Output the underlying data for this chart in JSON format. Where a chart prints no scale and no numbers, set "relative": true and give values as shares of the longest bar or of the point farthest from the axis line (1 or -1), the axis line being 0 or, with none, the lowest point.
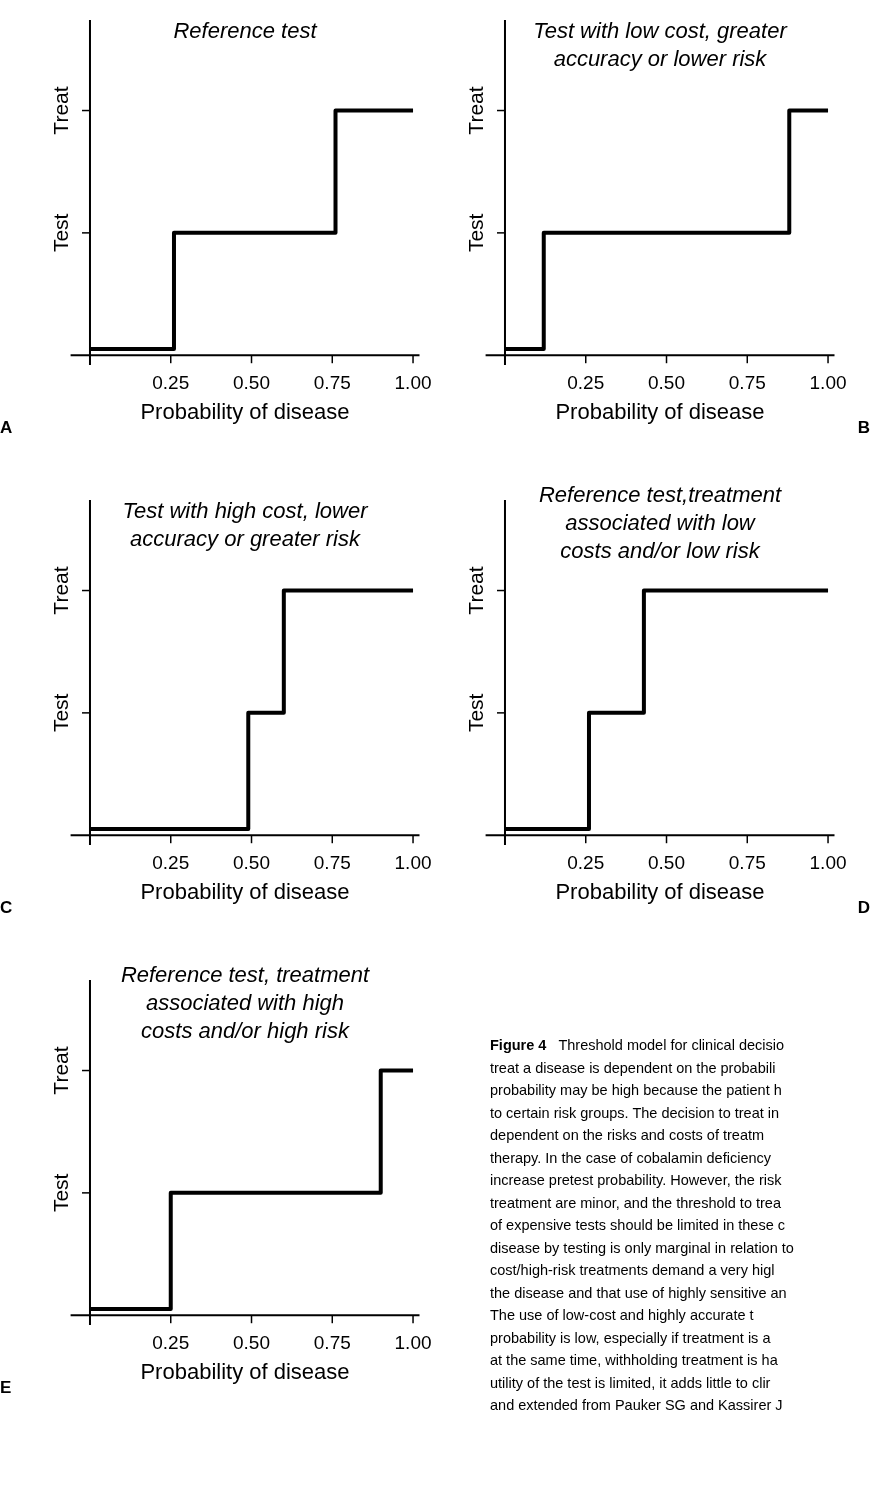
{
  "chart_data": [
    {
      "type": "step",
      "relative": true,
      "title": "Reference test",
      "xlabel": "Probability of disease",
      "annotations": [
        "A",
        "Test",
        "Treat"
      ],
      "x": [
        0,
        0.26,
        0.76,
        1.0
      ],
      "values": [
        0.025,
        0.5,
        1,
        1
      ],
      "color": "#000000",
      "xlim": [
        -0.06,
        1.02
      ],
      "xticks": [
        {
          "value": 0.25,
          "label": "0.25"
        },
        {
          "value": 0.5,
          "label": "0.50"
        },
        {
          "value": 0.75,
          "label": "0.75"
        },
        {
          "value": 1.0,
          "label": "1.00"
        }
      ]
    },
    {
      "type": "step",
      "relative": true,
      "title": "Test with low cost, greater\naccuracy or lower risk",
      "xlabel": "Probability of disease",
      "annotations": [
        "B",
        "Test",
        "Treat"
      ],
      "x": [
        0,
        0.12,
        0.88,
        1.0
      ],
      "values": [
        0.025,
        0.5,
        1,
        1
      ],
      "color": "#000000",
      "xlim": [
        -0.06,
        1.02
      ],
      "xticks": [
        {
          "value": 0.25,
          "label": "0.25"
        },
        {
          "value": 0.5,
          "label": "0.50"
        },
        {
          "value": 0.75,
          "label": "0.75"
        },
        {
          "value": 1.0,
          "label": "1.00"
        }
      ]
    },
    {
      "type": "step",
      "relative": true,
      "title": "Test with high cost, lower\naccuracy or greater risk",
      "xlabel": "Probability of disease",
      "annotations": [
        "C",
        "Test",
        "Treat"
      ],
      "x": [
        0,
        0.49,
        0.6,
        1.0
      ],
      "values": [
        0.025,
        0.5,
        1,
        1
      ],
      "color": "#000000",
      "xlim": [
        -0.06,
        1.02
      ],
      "xticks": [
        {
          "value": 0.25,
          "label": "0.25"
        },
        {
          "value": 0.5,
          "label": "0.50"
        },
        {
          "value": 0.75,
          "label": "0.75"
        },
        {
          "value": 1.0,
          "label": "1.00"
        }
      ]
    },
    {
      "type": "step",
      "relative": true,
      "title": "Reference test,treatment\nassociated with low\ncosts and/or low risk",
      "xlabel": "Probability of disease",
      "annotations": [
        "D",
        "Test",
        "Treat"
      ],
      "x": [
        0,
        0.26,
        0.43,
        1.0
      ],
      "values": [
        0.025,
        0.5,
        1,
        1
      ],
      "color": "#000000",
      "xlim": [
        -0.06,
        1.02
      ],
      "xticks": [
        {
          "value": 0.25,
          "label": "0.25"
        },
        {
          "value": 0.5,
          "label": "0.50"
        },
        {
          "value": 0.75,
          "label": "0.75"
        },
        {
          "value": 1.0,
          "label": "1.00"
        }
      ]
    },
    {
      "type": "step",
      "relative": true,
      "title": "Reference test, treatment\nassociated with high\ncosts and/or high risk",
      "xlabel": "Probability of disease",
      "annotations": [
        "E",
        "Test",
        "Treat"
      ],
      "x": [
        0,
        0.25,
        0.9,
        1.0
      ],
      "values": [
        0.025,
        0.5,
        1,
        1
      ],
      "color": "#000000",
      "xlim": [
        -0.06,
        1.02
      ],
      "xticks": [
        {
          "value": 0.25,
          "label": "0.25"
        },
        {
          "value": 0.5,
          "label": "0.50"
        },
        {
          "value": 0.75,
          "label": "0.75"
        },
        {
          "value": 1.0,
          "label": "1.00"
        }
      ]
    },
    {
      "type": "other",
      "title": "Figure 4",
      "annotations": [
        "Threshold model for clinical decisio",
        "treat a disease is dependent on the probabili",
        "probability may be high because the patient h",
        "to certain risk groups. The decision to treat in",
        "dependent on the risks and costs of treatm",
        "therapy. In the case of cobalamin deficiency",
        "increase pretest probability. However, the risk",
        "treatment are minor, and the threshold to trea",
        "of expensive tests should be limited in these c",
        "disease by testing is only marginal in relation to",
        "cost/high-risk treatments demand a very higl",
        "the disease and that use of highly sensitive an",
        "The use of low-cost and highly accurate t",
        "probability is low, especially if treatment is a",
        "at the same time, withholding treatment is ha",
        "utility of the test is limited, it adds little to clir",
        "and extended from Pauker SG and Kassirer J"
      ]
    }
  ]
}
